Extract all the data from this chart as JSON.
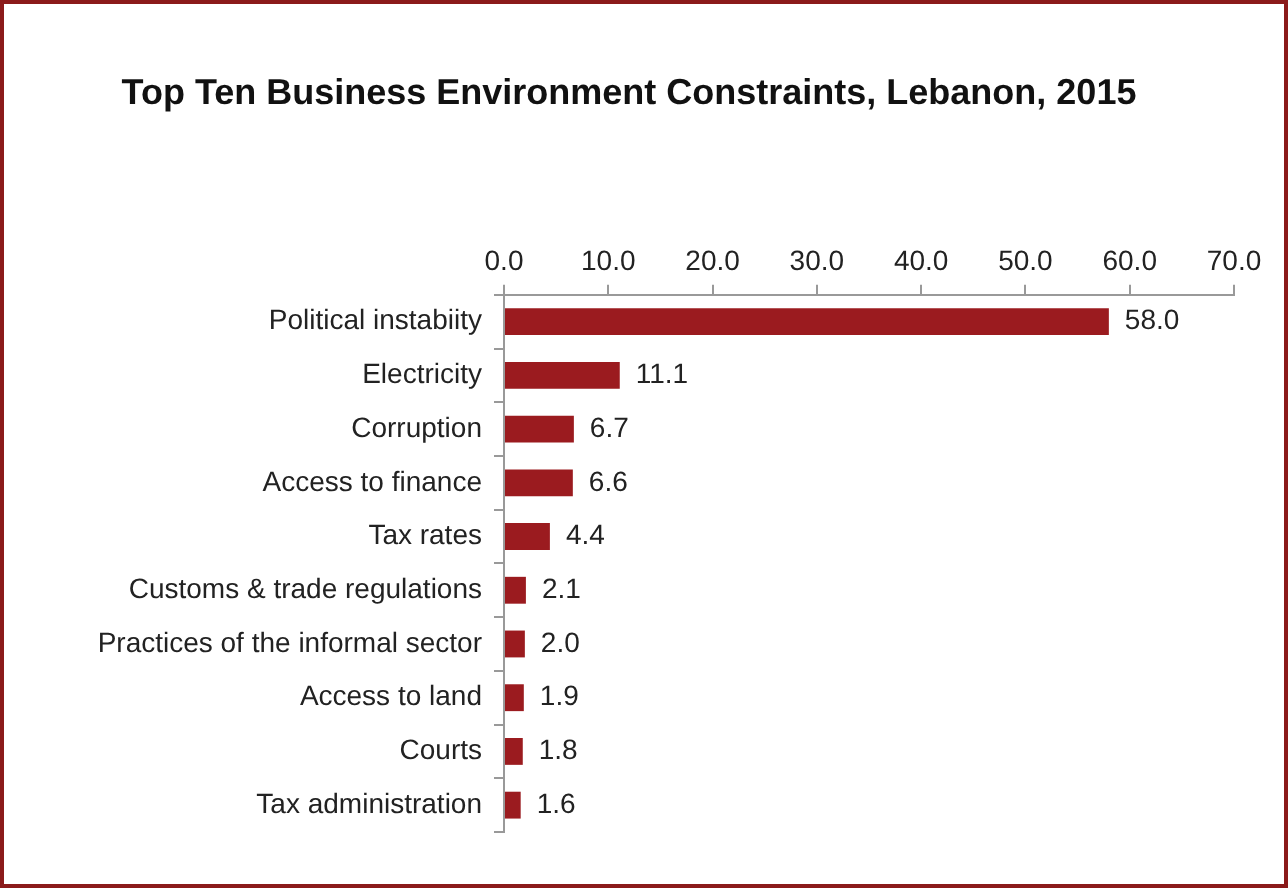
{
  "chart_data": {
    "type": "bar",
    "orientation": "horizontal",
    "title": "Top Ten Business Environment Constraints, Lebanon, 2015",
    "categories": [
      "Political instabiity",
      "Electricity",
      "Corruption",
      "Access to finance",
      "Tax rates",
      "Customs & trade regulations",
      "Practices of the informal sector",
      "Access to land",
      "Courts",
      "Tax administration"
    ],
    "values": [
      58.0,
      11.1,
      6.7,
      6.6,
      4.4,
      2.1,
      2.0,
      1.9,
      1.8,
      1.6
    ],
    "value_labels": [
      "58.0",
      "11.1",
      "6.7",
      "6.6",
      "4.4",
      "2.1",
      "2.0",
      "1.9",
      "1.8",
      "1.6"
    ],
    "color": "#9b1b1f",
    "xlim": [
      0,
      70
    ],
    "xticks": [
      {
        "value": 0,
        "label": "0.0"
      },
      {
        "value": 10,
        "label": "10.0"
      },
      {
        "value": 20,
        "label": "20.0"
      },
      {
        "value": 30,
        "label": "30.0"
      },
      {
        "value": 40,
        "label": "40.0"
      },
      {
        "value": 50,
        "label": "50.0"
      },
      {
        "value": 60,
        "label": "60.0"
      },
      {
        "value": 70,
        "label": "70.0"
      }
    ],
    "grid": false,
    "legend": false
  }
}
